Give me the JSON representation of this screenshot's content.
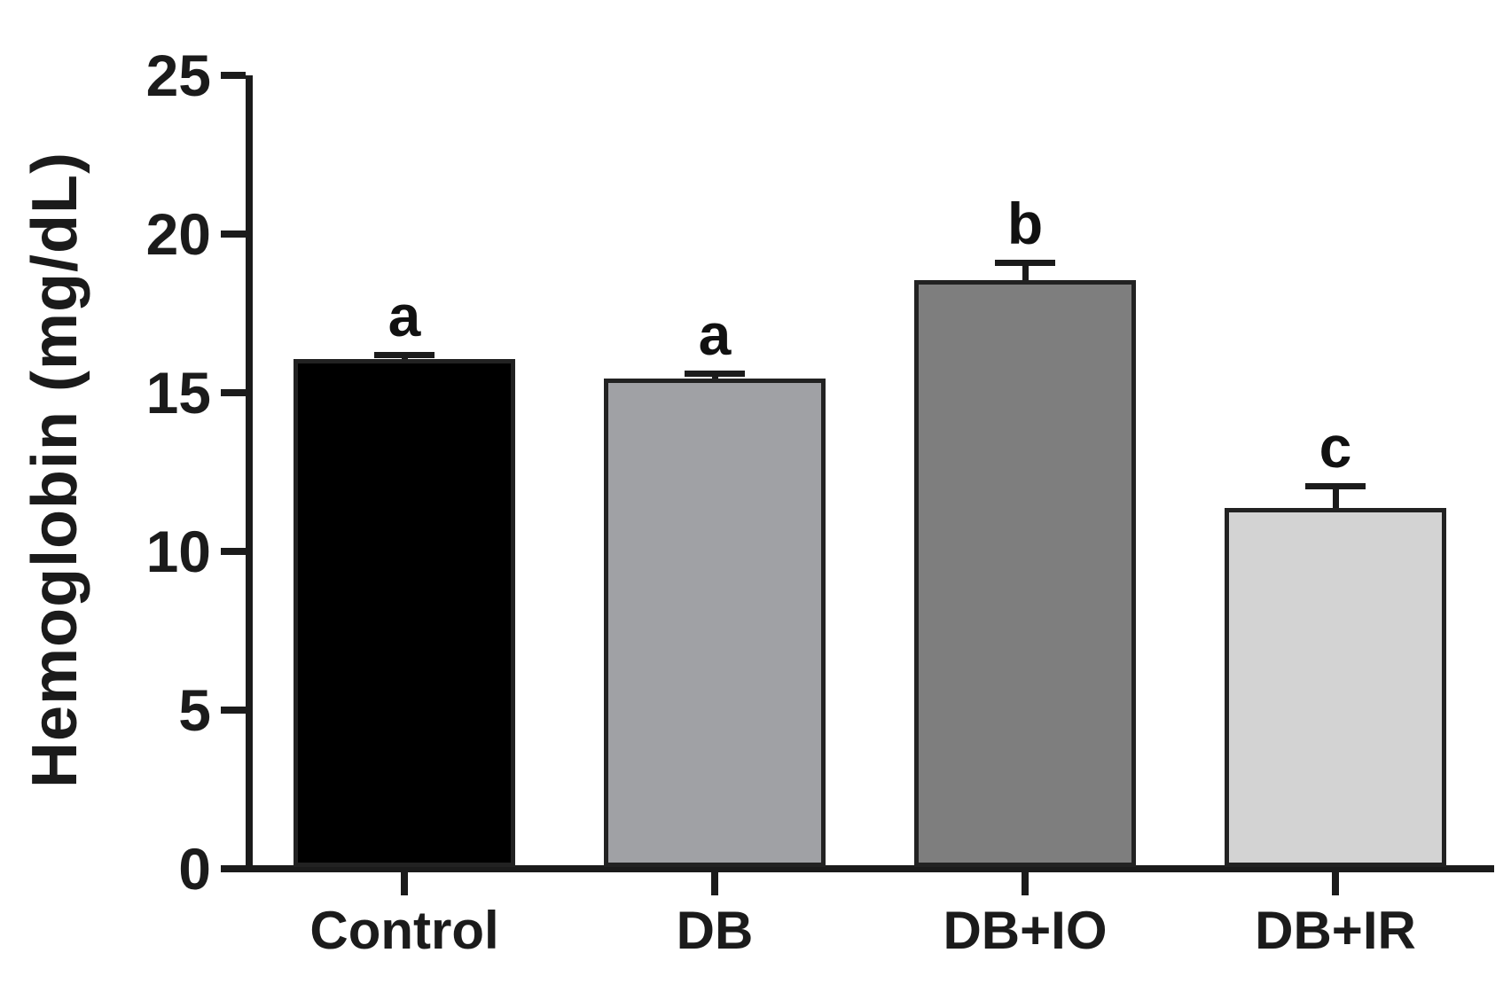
{
  "chart_data": {
    "type": "bar",
    "title": "",
    "ylabel": "Hemoglobin (mg/dL)",
    "xlabel": "",
    "categories": [
      "Control",
      "DB",
      "DB+IO",
      "DB+IR"
    ],
    "values": [
      16.0,
      15.4,
      18.5,
      11.3
    ],
    "errors_upper": [
      0.15,
      0.15,
      0.55,
      0.7
    ],
    "sig_letters": [
      "a",
      "a",
      "b",
      "c"
    ],
    "bar_colors": [
      "#000000",
      "#a0a1a5",
      "#7e7e7e",
      "#d3d3d3"
    ],
    "axis_color": "#1b1b1b",
    "background_color": "#ffffff",
    "ylim": [
      0,
      25
    ],
    "yticks": [
      25,
      20,
      15,
      10,
      5,
      0
    ],
    "grid": false,
    "legend_position": "none"
  }
}
